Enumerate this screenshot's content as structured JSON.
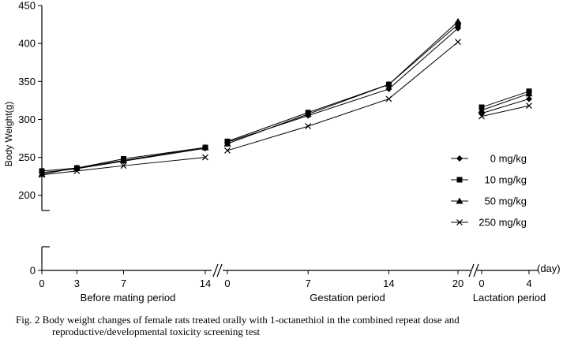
{
  "chart_data": {
    "type": "line",
    "ylabel": "Body Weight(g)",
    "x_unit": "(day)",
    "y_ticks_upper": [
      200,
      250,
      300,
      350,
      400,
      450
    ],
    "y_tick_lower": 0,
    "periods": [
      {
        "name": "Before mating period",
        "days": [
          0,
          3,
          7,
          14
        ]
      },
      {
        "name": "Gestation period",
        "days": [
          0,
          7,
          14,
          20
        ]
      },
      {
        "name": "Lactation period",
        "days": [
          0,
          4
        ]
      }
    ],
    "legend_position": "right",
    "series": [
      {
        "name": "0 mg/kg",
        "marker": "diamond",
        "values": [
          [
            230,
            235,
            245,
            262
          ],
          [
            270,
            305,
            340,
            420
          ],
          [
            308,
            327
          ]
        ]
      },
      {
        "name": "10 mg/kg",
        "marker": "square",
        "values": [
          [
            232,
            236,
            248,
            263
          ],
          [
            271,
            309,
            346,
            425
          ],
          [
            316,
            337
          ]
        ]
      },
      {
        "name": "50 mg/kg",
        "marker": "triangle",
        "values": [
          [
            228,
            236,
            246,
            263
          ],
          [
            268,
            307,
            346,
            429
          ],
          [
            312,
            334
          ]
        ]
      },
      {
        "name": "250 mg/kg",
        "marker": "x",
        "values": [
          [
            227,
            232,
            239,
            250
          ],
          [
            259,
            291,
            327,
            402
          ],
          [
            304,
            318
          ]
        ]
      }
    ]
  },
  "caption": {
    "line1": "Fig. 2  Body weight changes of female rats treated orally with 1-octanethiol in the combined repeat dose and",
    "line2": "reproductive/developmental toxicity screening test"
  }
}
